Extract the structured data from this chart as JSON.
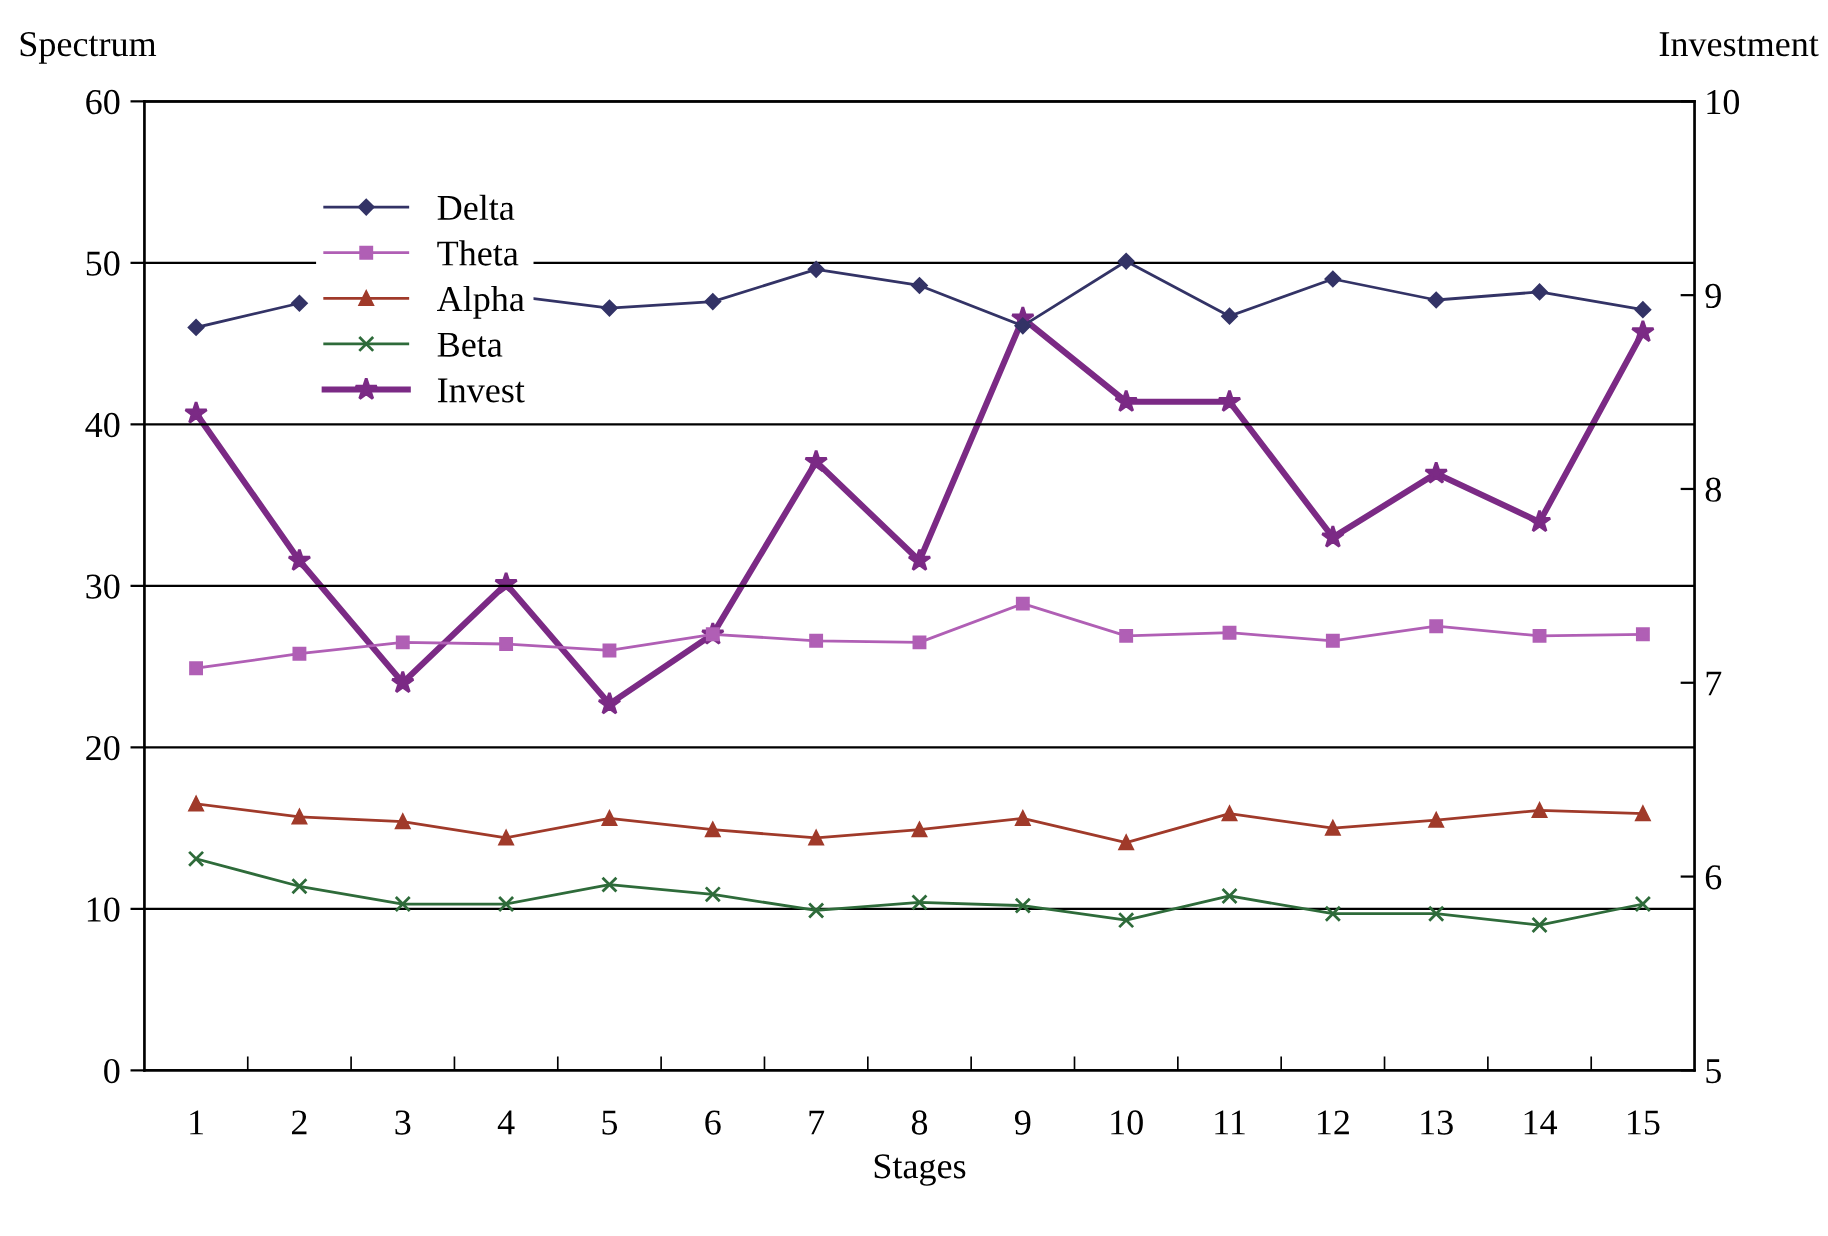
{
  "chart_data": {
    "type": "line",
    "xlabel": "Stages",
    "ylabel": "Spectrum",
    "y2label": "Investment",
    "categories": [
      "1",
      "2",
      "3",
      "4",
      "5",
      "6",
      "7",
      "8",
      "9",
      "10",
      "11",
      "12",
      "13",
      "14",
      "15"
    ],
    "ylim": [
      0,
      60
    ],
    "yticks": [
      0,
      10,
      20,
      30,
      40,
      50,
      60
    ],
    "y2lim": [
      5,
      10
    ],
    "y2ticks": [
      5,
      6,
      7,
      8,
      9,
      10
    ],
    "grid": "y",
    "legend": "top left",
    "series": [
      {
        "name": "Delta",
        "color": "#333366",
        "marker": "diamond",
        "values": [
          46.0,
          47.5,
          null,
          48.0,
          47.2,
          47.6,
          49.6,
          48.6,
          46.1,
          50.1,
          46.7,
          49.0,
          47.7,
          48.2,
          47.1
        ]
      },
      {
        "name": "Theta",
        "color": "#b05fb5",
        "marker": "square",
        "values": [
          24.9,
          25.8,
          26.5,
          26.4,
          26.0,
          27.0,
          26.6,
          26.5,
          28.9,
          26.9,
          27.1,
          26.6,
          27.5,
          26.9,
          27.0
        ]
      },
      {
        "name": "Alpha",
        "color": "#a03a2a",
        "marker": "triangle",
        "values": [
          16.5,
          15.7,
          15.4,
          14.4,
          15.6,
          14.9,
          14.4,
          14.9,
          15.6,
          14.1,
          15.9,
          15.0,
          15.5,
          16.1,
          15.9
        ]
      },
      {
        "name": "Beta",
        "color": "#2e6b3a",
        "marker": "cross",
        "values": [
          13.1,
          11.4,
          10.3,
          10.3,
          11.5,
          10.9,
          9.9,
          10.4,
          10.2,
          9.3,
          10.8,
          9.7,
          9.7,
          9.0,
          10.3
        ]
      },
      {
        "name": "Invest",
        "color": "#7b2a85",
        "marker": "star",
        "axis": "y2",
        "values": [
          8.39,
          7.63,
          7.0,
          7.51,
          6.89,
          7.25,
          8.14,
          7.63,
          8.88,
          8.45,
          8.45,
          7.75,
          8.08,
          7.83,
          8.81
        ]
      }
    ]
  }
}
